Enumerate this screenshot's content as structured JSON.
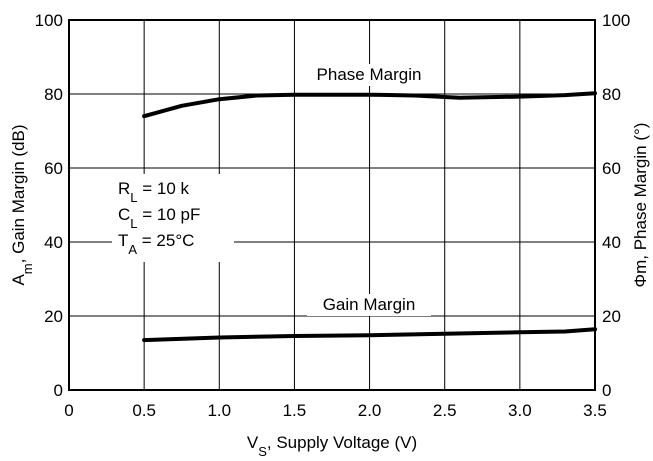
{
  "chart_data": {
    "type": "line",
    "xlabel": {
      "main": "V",
      "sub": "S",
      "rest": ", Supply Voltage (V)"
    },
    "ylabel_left": {
      "main": "A",
      "sub": "m",
      "rest": ", Gain Margin (dB)"
    },
    "ylabel_right": "Φm, Phase Margin (°)",
    "xlim": [
      0,
      3.5
    ],
    "ylim": [
      0,
      100
    ],
    "xticks": [
      "0",
      "0.5",
      "1.0",
      "1.5",
      "2.0",
      "2.5",
      "3.0",
      "3.5"
    ],
    "xtick_values": [
      0,
      0.5,
      1.0,
      1.5,
      2.0,
      2.5,
      3.0,
      3.5
    ],
    "yticks": [
      "0",
      "20",
      "40",
      "60",
      "80",
      "100"
    ],
    "ytick_values": [
      0,
      20,
      40,
      60,
      80,
      100
    ],
    "yticks_right": [
      "0",
      "20",
      "40",
      "60",
      "80",
      "100"
    ],
    "grid": true,
    "conditions": [
      {
        "main": "R",
        "sub": "L",
        "rest": " = 10 k"
      },
      {
        "main": "C",
        "sub": "L",
        "rest": " = 10 pF"
      },
      {
        "main": "T",
        "sub": "A",
        "rest": " = 25°C"
      }
    ],
    "series": [
      {
        "name": "Phase Margin",
        "x": [
          0.5,
          0.75,
          1.0,
          1.25,
          1.5,
          2.0,
          2.3,
          2.6,
          3.0,
          3.3,
          3.5
        ],
        "y": [
          74,
          76.8,
          78.6,
          79.6,
          79.8,
          79.8,
          79.6,
          79.0,
          79.3,
          79.7,
          80.2
        ]
      },
      {
        "name": "Gain Margin",
        "x": [
          0.5,
          1.0,
          1.5,
          2.0,
          2.5,
          3.0,
          3.3,
          3.5
        ],
        "y": [
          13.5,
          14.2,
          14.6,
          14.8,
          15.2,
          15.6,
          15.8,
          16.4
        ]
      }
    ]
  }
}
